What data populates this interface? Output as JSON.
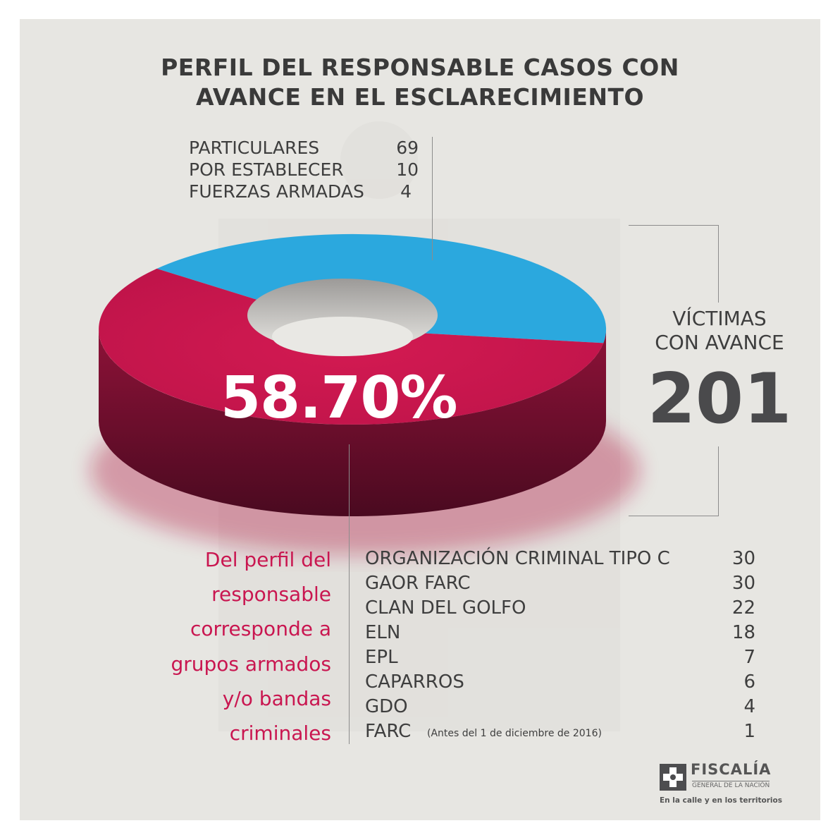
{
  "title_line1": "PERFIL DEL RESPONSABLE CASOS CON",
  "title_line2": "AVANCE EN EL ESCLARECIMIENTO",
  "top_list": [
    {
      "label": "PARTICULARES",
      "value": "69"
    },
    {
      "label": "POR ESTABLECER",
      "value": "10"
    },
    {
      "label": "FUERZAS ARMADAS",
      "value": "4"
    }
  ],
  "victims": {
    "line1": "VÍCTIMAS",
    "line2": "CON AVANCE",
    "total": "201"
  },
  "percent_label": "58.70%",
  "profile_text": [
    "Del perfil del",
    "responsable",
    "corresponde a",
    "grupos armados",
    "y/o bandas",
    "criminales"
  ],
  "groups": [
    {
      "label": "ORGANIZACIÓN CRIMINAL TIPO C",
      "value": "30"
    },
    {
      "label": "GAOR FARC",
      "value": "30"
    },
    {
      "label": "CLAN DEL GOLFO",
      "value": "22"
    },
    {
      "label": "ELN",
      "value": "18"
    },
    {
      "label": "EPL",
      "value": "7"
    },
    {
      "label": "CAPARROS",
      "value": "6"
    },
    {
      "label": "GDO",
      "value": "4"
    },
    {
      "label": "FARC",
      "value": "1",
      "note": "(Antes del 1 de diciembre de 2016)"
    }
  ],
  "logo": {
    "name": "FISCALÍA",
    "sub": "GENERAL DE LA NACIÓN",
    "slogan": "En la calle y en los territorios"
  },
  "colors": {
    "armed_groups": "#c91650",
    "other": "#2ba8de",
    "background": "#e7e6e2"
  },
  "chart_data": {
    "type": "pie",
    "total": 201,
    "slices": [
      {
        "label": "Grupos armados y/o bandas criminales",
        "value": 118,
        "percent": 58.7,
        "color": "#c91650"
      },
      {
        "label": "Particulares, por establecer, fuerzas armadas",
        "value": 83,
        "percent": 41.3,
        "color": "#2ba8de"
      }
    ]
  }
}
